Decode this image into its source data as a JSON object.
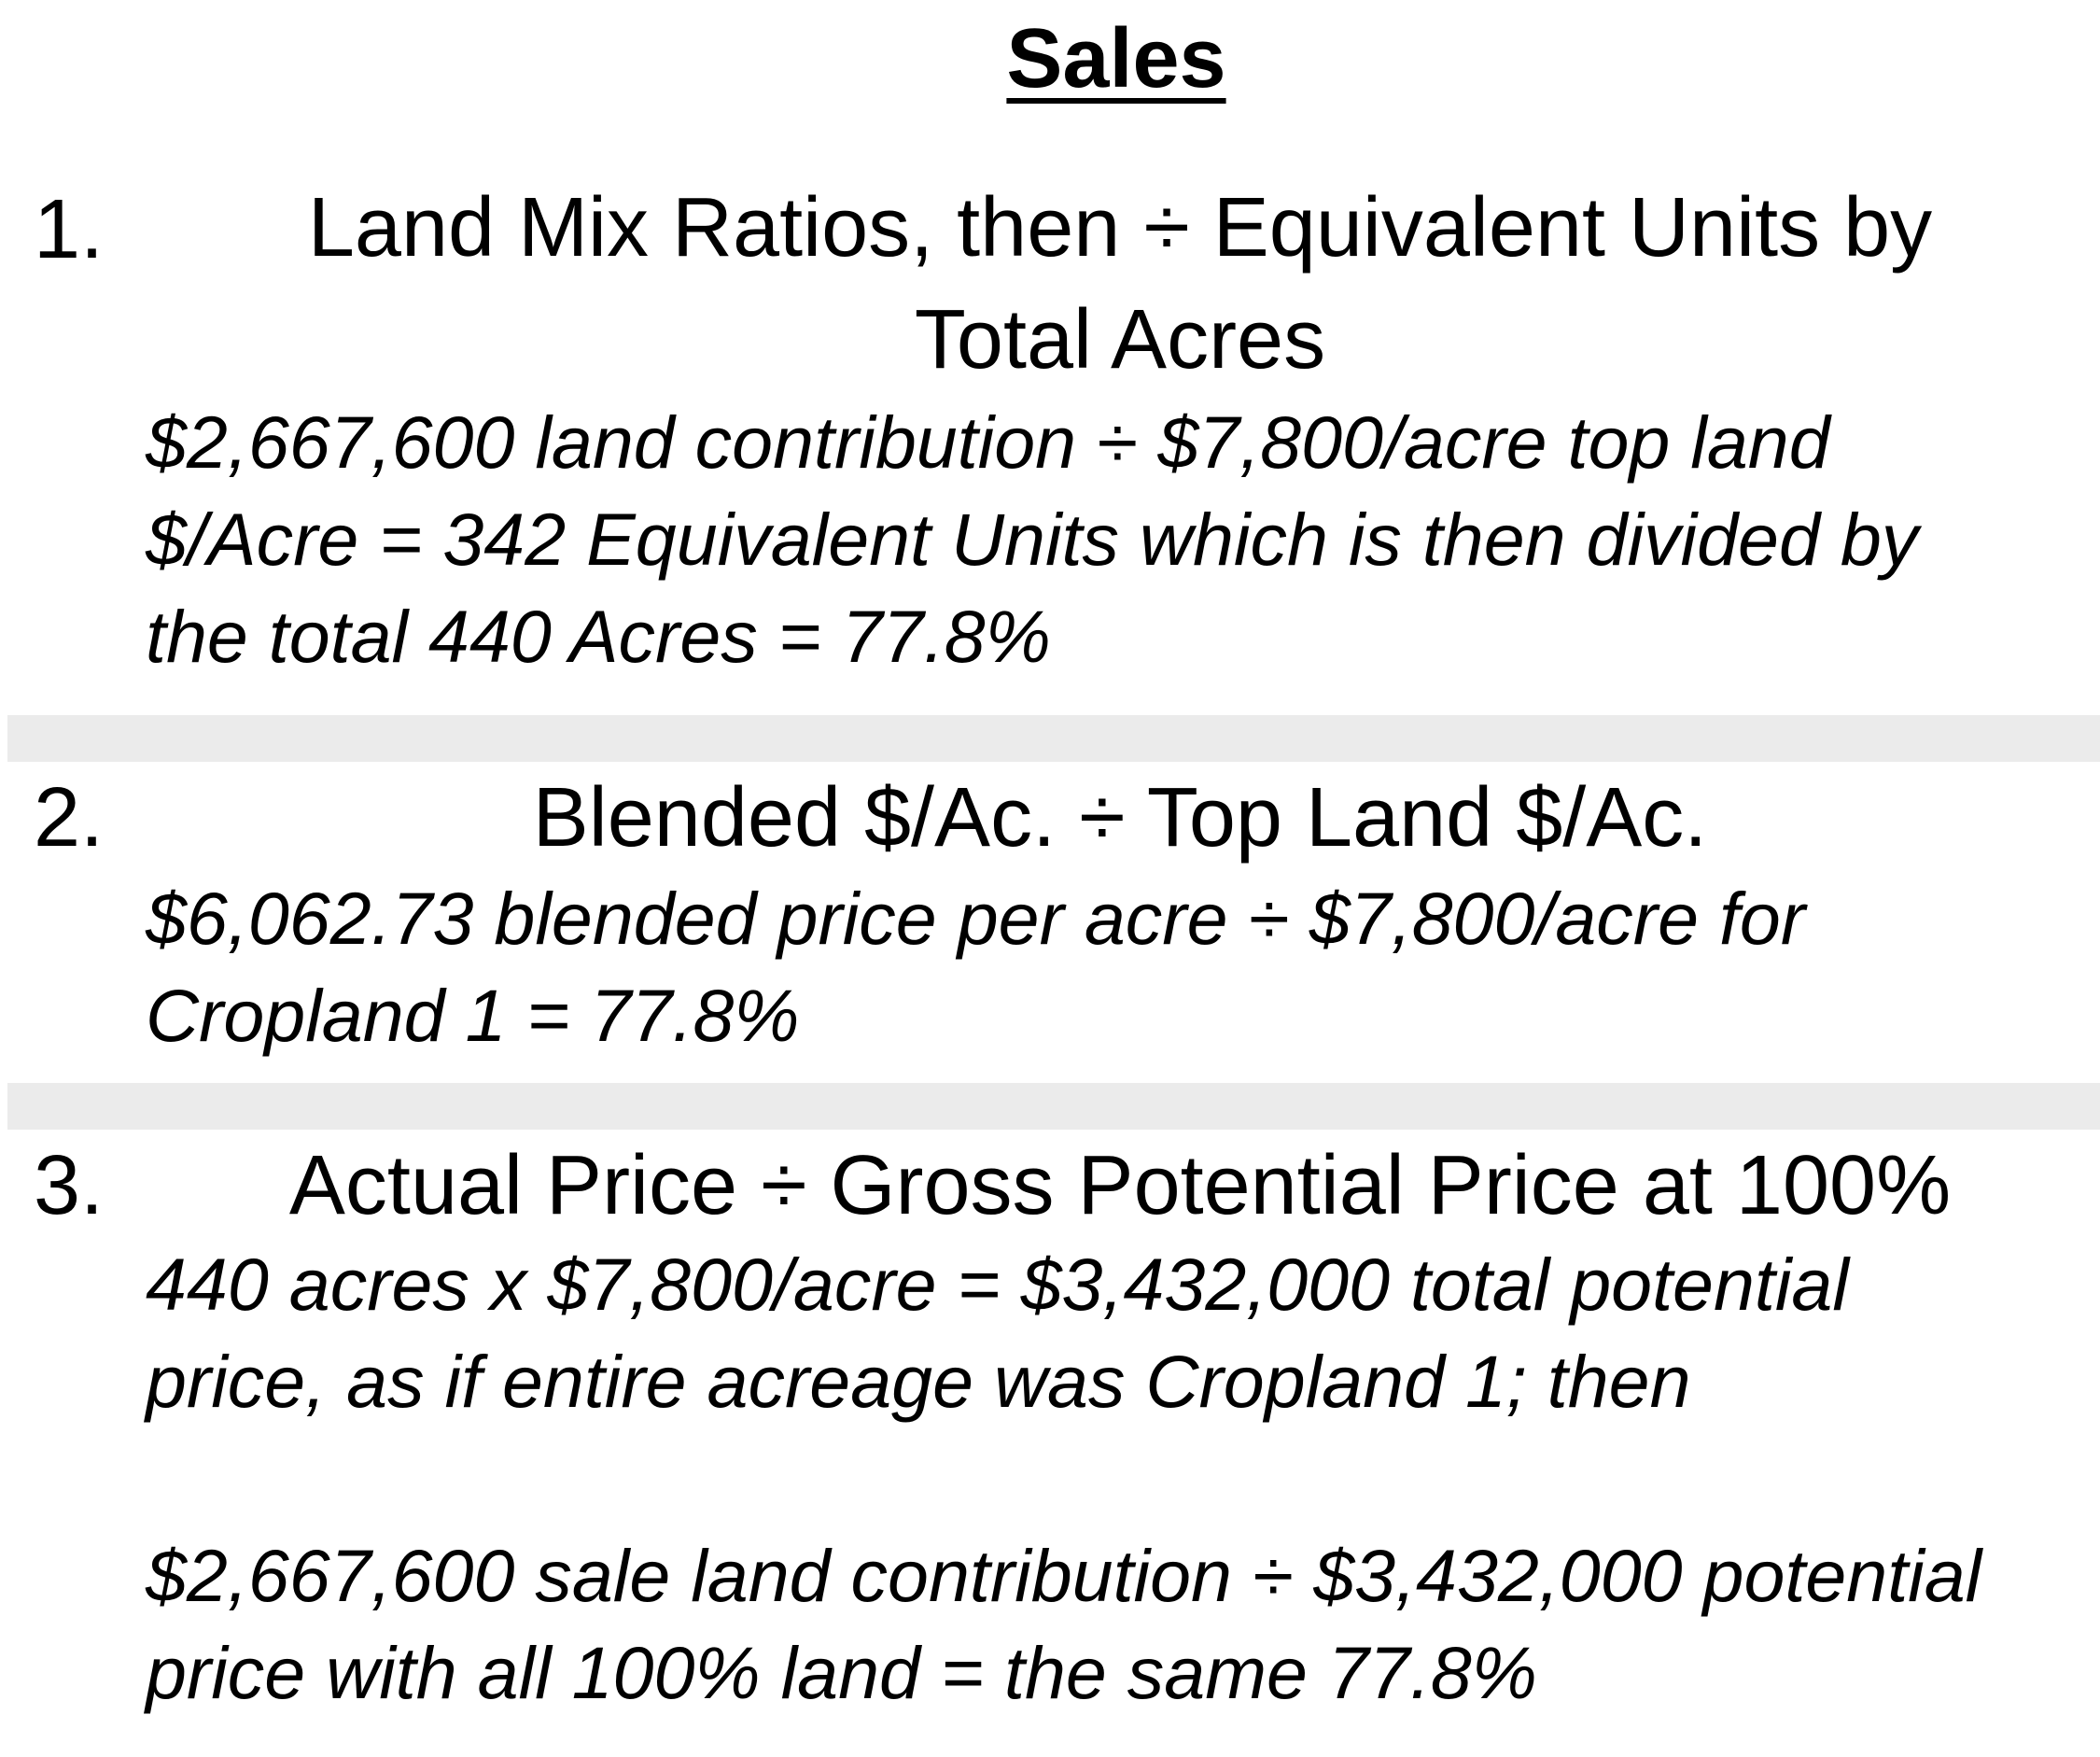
{
  "title": "Sales",
  "items": [
    {
      "number": "1.",
      "heading_line1": "Land Mix Ratios, then ÷ Equivalent Units by",
      "heading_line2": "Total Acres",
      "body": [
        "$2,667,600 land contribution ÷ $7,800/acre top land",
        "$/Acre = 342 Equivalent Units which is then divided by",
        "the total 440 Acres = 77.8%"
      ]
    },
    {
      "number": "2.",
      "heading_line1": "Blended $/Ac. ÷ Top Land $/Ac.",
      "body": [
        "$6,062.73 blended price per acre ÷ $7,800/acre for",
        "Cropland 1 = 77.8%"
      ]
    },
    {
      "number": "3.",
      "heading_line1": "Actual Price ÷ Gross Potential Price at 100%",
      "body": [
        "440 acres x $7,800/acre = $3,432,000 total potential",
        "price, as if entire acreage was Cropland 1; then",
        "$2,667,600 sale land contribution ÷ $3,432,000 potential",
        "price with all 100% land = the same 77.8%"
      ]
    }
  ],
  "colors": {
    "text": "#000000",
    "separator": "#ebebeb",
    "background": "#ffffff"
  }
}
